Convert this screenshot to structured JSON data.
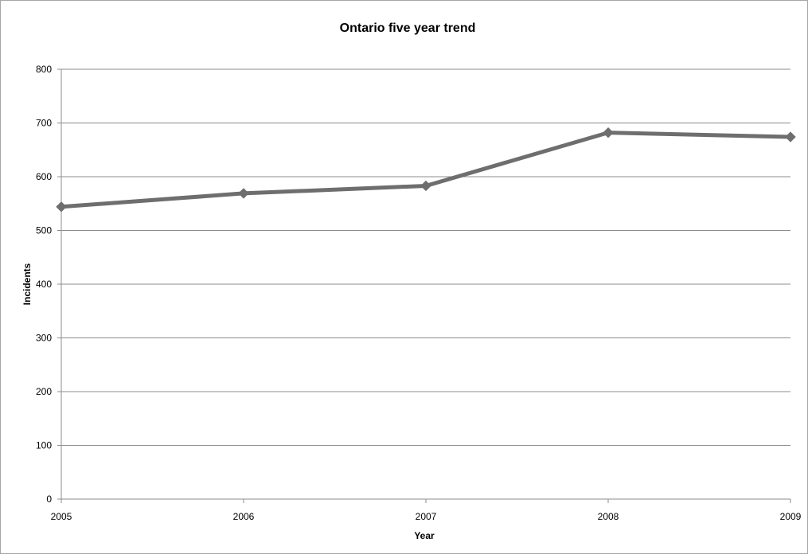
{
  "chart_data": {
    "type": "line",
    "title": "Ontario five year trend",
    "xlabel": "Year",
    "ylabel": "Incidents",
    "categories": [
      "2005",
      "2006",
      "2007",
      "2008",
      "2009"
    ],
    "series": [
      {
        "values": [
          544,
          569,
          583,
          682,
          674
        ],
        "color": "#6e6e6e",
        "marker": "diamond"
      }
    ],
    "ylim": [
      0,
      800
    ],
    "yticks": [
      0,
      100,
      200,
      300,
      400,
      500,
      600,
      700,
      800
    ],
    "grid": "horizontal",
    "legend": "none"
  }
}
